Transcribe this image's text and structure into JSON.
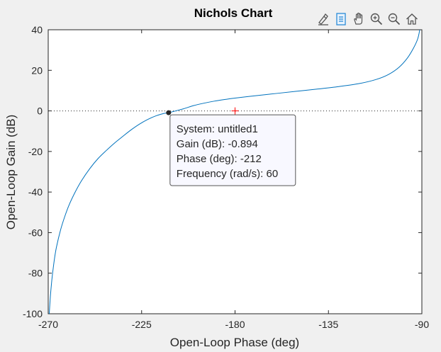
{
  "toolbar": {
    "buttons": [
      {
        "name": "brush-icon",
        "label": "Brush"
      },
      {
        "name": "data-tips-icon",
        "label": "Data Tips"
      },
      {
        "name": "pan-icon",
        "label": "Pan"
      },
      {
        "name": "zoom-in-icon",
        "label": "Zoom In"
      },
      {
        "name": "zoom-out-icon",
        "label": "Zoom Out"
      },
      {
        "name": "home-icon",
        "label": "Restore View"
      }
    ]
  },
  "chart_data": {
    "type": "line",
    "title": "Nichols Chart",
    "xlabel": "Open-Loop Phase (deg)",
    "ylabel": "Open-Loop Gain (dB)",
    "xlim": [
      -270,
      -90
    ],
    "ylim": [
      -100,
      40
    ],
    "xticks": [
      -270,
      -225,
      -180,
      -135,
      -90
    ],
    "yticks": [
      -100,
      -80,
      -60,
      -40,
      -20,
      0,
      20,
      40
    ],
    "grid": false,
    "series": [
      {
        "color": "#0072bd",
        "x": [
          -269.5,
          -269,
          -268.5,
          -268,
          -267,
          -266,
          -264,
          -262,
          -260,
          -257,
          -254,
          -250,
          -246,
          -242,
          -238,
          -234,
          -230,
          -226,
          -222,
          -218,
          -214,
          -212,
          -205,
          -200,
          -195,
          -190,
          -185,
          -180,
          -170,
          -160,
          -150,
          -140,
          -130,
          -120,
          -112,
          -106,
          -101,
          -97,
          -94,
          -92,
          -91
        ],
        "y": [
          -100,
          -92,
          -86,
          -81,
          -73,
          -67,
          -58.5,
          -52,
          -46.5,
          -40,
          -34.5,
          -28.5,
          -23.5,
          -19.5,
          -15.8,
          -12.5,
          -9.3,
          -6.5,
          -4.2,
          -2.4,
          -1.2,
          -0.894,
          1.0,
          2.6,
          3.8,
          4.8,
          5.6,
          6.3,
          7.5,
          8.6,
          9.7,
          10.8,
          12.0,
          13.5,
          15.5,
          18.0,
          21.5,
          26,
          31,
          35.5,
          40
        ]
      }
    ],
    "reference_line": {
      "y": 0,
      "style": "dotted",
      "color": "#262626"
    },
    "critical_point": {
      "x": -180,
      "y": 0,
      "marker": "+",
      "color": "#ff0000"
    },
    "datatip": {
      "x": -212,
      "y": -0.894,
      "lines": [
        "System: untitled1",
        "Gain (dB): -0.894",
        "Phase (deg): -212",
        "Frequency (rad/s): 60"
      ]
    }
  }
}
